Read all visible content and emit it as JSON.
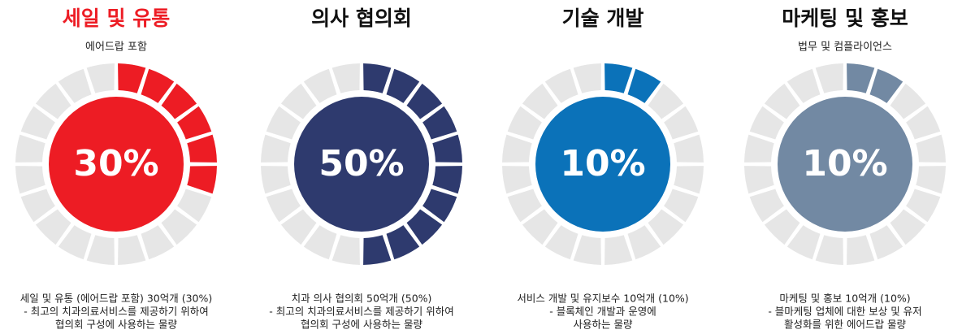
{
  "chart_data": [
    {
      "type": "donut",
      "title": "세일 및 유통",
      "subtitle": "에어드랍 포함",
      "values": [
        30
      ],
      "value_labels": [
        "30%"
      ],
      "color": "#ed1c24",
      "title_color": "#ed1c24",
      "description": [
        "세일 및 유통 (에어드랍 포함) 30억개 (30%)",
        "- 최고의 치과의료서비스를 제공하기 위하여",
        "협의회 구성에 사용하는 물량"
      ]
    },
    {
      "type": "donut",
      "title": "의사 협의회",
      "values": [
        50
      ],
      "value_labels": [
        "50%"
      ],
      "color": "#2e3a6e",
      "title_color": "#111111",
      "description": [
        "치과 의사 협의회 50억개 (50%)",
        "- 최고의 치과의료서비스를 제공하기 위하여",
        "협의회 구성에 사용하는 물량"
      ]
    },
    {
      "type": "donut",
      "title": "기술 개발",
      "values": [
        10
      ],
      "value_labels": [
        "10%"
      ],
      "color": "#0b72b9",
      "title_color": "#111111",
      "description": [
        "서비스 개발 및 유지보수 10억개 (10%)",
        "- 블록체인 개발과 운영에",
        "사용하는 물량"
      ]
    },
    {
      "type": "donut",
      "title": "마케팅 및 홍보",
      "subtitle": "법무 및 컴플라이언스",
      "values": [
        10
      ],
      "value_labels": [
        "10%"
      ],
      "color": "#7289a3",
      "title_color": "#111111",
      "description": [
        "마케팅 및 홍보 10억개 (10%)",
        "- 블마케팅 업체에 대한 보상 및 유저",
        "활성화를 위한 에어드랍 물량"
      ]
    }
  ]
}
